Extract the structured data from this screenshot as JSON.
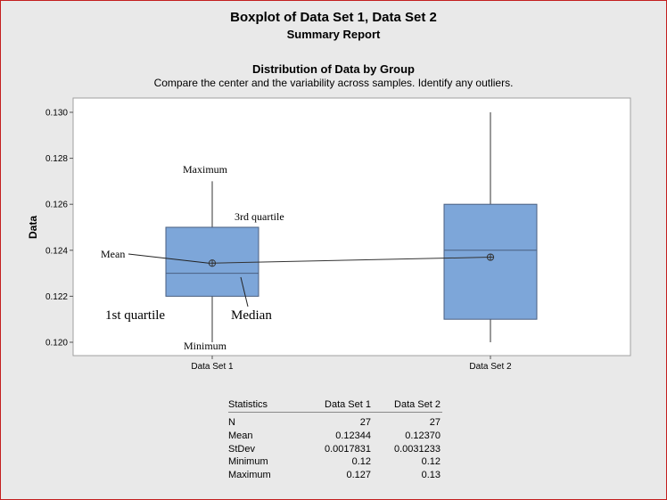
{
  "report": {
    "title": "Boxplot of Data Set 1, Data Set 2",
    "subtitle": "Summary Report",
    "section_title": "Distribution of Data by Group",
    "section_subtitle": "Compare the center and the variability across samples. Identify any outliers."
  },
  "colors": {
    "background": "#e9e9e9",
    "plot_area": "#ffffff",
    "box_fill": "#7da6d9",
    "box_edge": "#4a5f80",
    "frame_border": "#c41e1e"
  },
  "annotations": {
    "maximum": "Maximum",
    "third_quartile": "3rd quartile",
    "mean": "Mean",
    "first_quartile": "1st  quartile",
    "median": "Median",
    "minimum": "Minimum"
  },
  "chart_data": {
    "type": "boxplot",
    "ylabel": "Data",
    "ylim": [
      0.1194,
      0.1306
    ],
    "yticks": [
      "0.130",
      "0.128",
      "0.126",
      "0.124",
      "0.122",
      "0.120"
    ],
    "ytick_values": [
      0.13,
      0.128,
      0.126,
      0.124,
      0.122,
      0.12
    ],
    "grid": false,
    "groups": [
      {
        "name": "Data Set 1",
        "min": 0.12,
        "q1": 0.122,
        "median": 0.123,
        "q3": 0.125,
        "max": 0.127,
        "mean": 0.12344
      },
      {
        "name": "Data Set 2",
        "min": 0.12,
        "q1": 0.121,
        "median": 0.124,
        "q3": 0.126,
        "max": 0.13,
        "mean": 0.1237
      }
    ],
    "mean_connect_line": true
  },
  "statistics_table": {
    "headers": [
      "Statistics",
      "Data Set 1",
      "Data Set 2"
    ],
    "rows": [
      [
        "N",
        "27",
        "27"
      ],
      [
        "Mean",
        "0.12344",
        "0.12370"
      ],
      [
        "StDev",
        "0.0017831",
        "0.0031233"
      ],
      [
        "Minimum",
        "0.12",
        "0.12"
      ],
      [
        "Maximum",
        "0.127",
        "0.13"
      ]
    ]
  }
}
